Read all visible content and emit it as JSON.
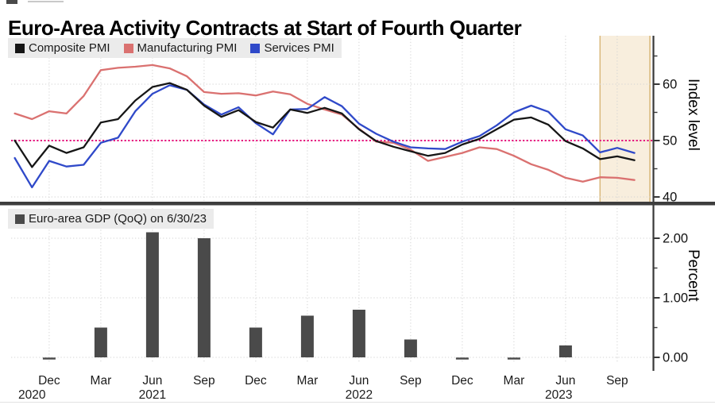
{
  "page": {
    "title": "Euro-Area Activity Contracts at Start of Fourth Quarter"
  },
  "axis": {
    "months": [
      "Dec",
      "Mar",
      "Jun",
      "Sep",
      "Dec",
      "Mar",
      "Jun",
      "Sep",
      "Dec",
      "Mar",
      "Jun",
      "Sep"
    ],
    "years": [
      {
        "label": "2020",
        "month_index": 1.0
      },
      {
        "label": "2021",
        "month_index": 8.0
      },
      {
        "label": "2022",
        "month_index": 20.0
      },
      {
        "label": "2023",
        "month_index": 31.6
      }
    ]
  },
  "chart_data": [
    {
      "type": "line",
      "panel": "top",
      "x_start": "2020-10",
      "x_freq": "monthly",
      "ylabel": "Index level",
      "ylim": [
        38.9,
        68.6
      ],
      "yticks": [
        {
          "value": 40,
          "label": "40"
        },
        {
          "value": 50,
          "label": "50"
        },
        {
          "value": 60,
          "label": "60"
        }
      ],
      "minor_yticks": [
        45,
        55,
        65
      ],
      "grid": true,
      "legend_position": "top-left",
      "reference_line": {
        "value": 50,
        "color": "#e5107d",
        "style": "dotted"
      },
      "highlight_band": {
        "start_month": "2023-08",
        "start_month_index": 34,
        "to": "plot-right-edge",
        "fill": "#f8eedd",
        "edge_color": "#d9b97c"
      },
      "series": [
        {
          "name": "Composite PMI",
          "color": "#161616",
          "values": [
            50.0,
            45.3,
            49.1,
            47.8,
            48.8,
            53.2,
            53.8,
            57.1,
            59.5,
            60.2,
            59.0,
            56.2,
            54.2,
            55.4,
            53.3,
            52.3,
            55.5,
            54.9,
            55.8,
            54.8,
            52.0,
            49.9,
            48.9,
            48.1,
            47.3,
            47.8,
            49.3,
            50.3,
            52.0,
            53.7,
            54.1,
            52.8,
            49.9,
            48.6,
            46.7,
            47.2,
            46.5
          ]
        },
        {
          "name": "Manufacturing PMI",
          "color": "#da7170",
          "values": [
            54.8,
            53.8,
            55.2,
            54.8,
            57.9,
            62.5,
            62.9,
            63.1,
            63.4,
            62.8,
            61.4,
            58.6,
            58.3,
            58.4,
            58.0,
            58.7,
            58.2,
            56.5,
            55.5,
            54.6,
            52.1,
            49.8,
            49.6,
            48.4,
            46.4,
            47.1,
            47.8,
            48.8,
            48.5,
            47.3,
            45.8,
            44.8,
            43.4,
            42.7,
            43.5,
            43.4,
            43.0
          ]
        },
        {
          "name": "Services PMI",
          "color": "#2f49c9",
          "values": [
            46.9,
            41.7,
            46.4,
            45.4,
            45.7,
            49.6,
            50.5,
            55.2,
            58.3,
            59.8,
            59.0,
            56.4,
            54.6,
            55.9,
            53.1,
            51.1,
            55.5,
            55.6,
            57.7,
            56.1,
            53.0,
            51.2,
            49.8,
            48.8,
            48.6,
            48.5,
            49.8,
            50.8,
            52.7,
            55.0,
            56.2,
            55.1,
            52.0,
            50.9,
            47.9,
            48.7,
            47.8
          ]
        }
      ]
    },
    {
      "type": "bar",
      "panel": "bottom",
      "legend": "Euro-area GDP (QoQ) on 6/30/23",
      "ylabel": "Percent",
      "ylim": [
        -0.15,
        2.5
      ],
      "yticks": [
        {
          "value": 0,
          "label": "0.00"
        },
        {
          "value": 1,
          "label": "1.00"
        },
        {
          "value": 2,
          "label": "2.00"
        }
      ],
      "minor_yticks": [
        0.5,
        1.5
      ],
      "grid": true,
      "bar_color": "#4a4a4a",
      "categories": [
        "Dec 2020",
        "Mar 2021",
        "Jun 2021",
        "Sep 2021",
        "Dec 2021",
        "Mar 2022",
        "Jun 2022",
        "Sep 2022",
        "Dec 2022",
        "Mar 2023",
        "Jun 2023",
        "Sep 2023"
      ],
      "values": [
        -0.05,
        0.5,
        2.1,
        2.0,
        0.5,
        0.7,
        0.8,
        0.3,
        -0.05,
        0.0,
        0.2,
        null
      ]
    }
  ]
}
